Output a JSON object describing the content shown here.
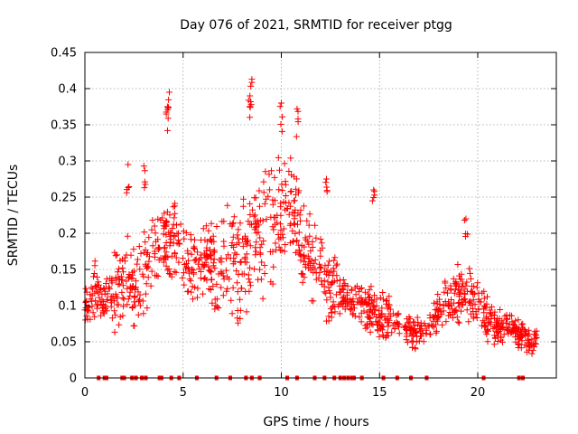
{
  "chart_data": {
    "type": "scatter",
    "title": "Day 076 of 2021, SRMTID for receiver ptgg",
    "xlabel": "GPS time / hours",
    "ylabel": "SRMTID / TECUs",
    "xlim": [
      0,
      24
    ],
    "ylim": [
      0,
      0.45
    ],
    "xticks": [
      0,
      5,
      10,
      15,
      20
    ],
    "xtick_labels": [
      "0",
      "5",
      "10",
      "15",
      "20"
    ],
    "yticks": [
      0,
      0.05,
      0.1,
      0.15,
      0.2,
      0.25,
      0.3,
      0.35,
      0.4,
      0.45
    ],
    "ytick_labels": [
      "0",
      "0.05",
      "0.1",
      "0.15",
      "0.2",
      "0.25",
      "0.3",
      "0.35",
      "0.4",
      "0.45"
    ],
    "grid": true,
    "series": [
      {
        "name": "SRMTID",
        "color": "#ff0000",
        "marker": "plus",
        "envelope_hours": [
          0,
          0.5,
          1.0,
          1.5,
          2.0,
          2.5,
          3.0,
          3.5,
          4.0,
          4.5,
          5.0,
          5.5,
          6.0,
          6.5,
          7.0,
          7.5,
          8.0,
          8.5,
          9.0,
          9.5,
          10.0,
          10.5,
          11.0,
          11.5,
          12.0,
          12.5,
          13.0,
          13.5,
          14.0,
          14.5,
          15.0,
          15.5,
          16.0,
          16.5,
          17.0,
          17.5,
          18.0,
          18.5,
          19.0,
          19.5,
          20.0,
          20.5,
          21.0,
          21.5,
          22.0,
          22.5,
          23.0
        ],
        "envelope_low": [
          0.07,
          0.07,
          0.06,
          0.05,
          0.05,
          0.05,
          0.05,
          0.09,
          0.13,
          0.12,
          0.11,
          0.1,
          0.1,
          0.07,
          0.07,
          0.08,
          0.07,
          0.09,
          0.1,
          0.12,
          0.14,
          0.14,
          0.13,
          0.1,
          0.07,
          0.07,
          0.08,
          0.08,
          0.07,
          0.06,
          0.04,
          0.05,
          0.05,
          0.04,
          0.04,
          0.05,
          0.06,
          0.06,
          0.07,
          0.07,
          0.06,
          0.05,
          0.04,
          0.05,
          0.04,
          0.03,
          0.03
        ],
        "envelope_high": [
          0.12,
          0.17,
          0.13,
          0.18,
          0.22,
          0.18,
          0.24,
          0.22,
          0.25,
          0.27,
          0.22,
          0.21,
          0.22,
          0.23,
          0.24,
          0.25,
          0.26,
          0.28,
          0.29,
          0.31,
          0.33,
          0.32,
          0.27,
          0.23,
          0.21,
          0.19,
          0.15,
          0.13,
          0.13,
          0.13,
          0.12,
          0.12,
          0.1,
          0.09,
          0.09,
          0.09,
          0.12,
          0.15,
          0.16,
          0.16,
          0.14,
          0.12,
          0.1,
          0.09,
          0.09,
          0.07,
          0.07
        ],
        "peaks": [
          {
            "x": 4.3,
            "y": 0.395
          },
          {
            "x": 4.2,
            "y": 0.375
          },
          {
            "x": 8.5,
            "y": 0.413
          },
          {
            "x": 8.4,
            "y": 0.39
          },
          {
            "x": 10.0,
            "y": 0.38
          },
          {
            "x": 10.8,
            "y": 0.372
          },
          {
            "x": 2.2,
            "y": 0.295
          },
          {
            "x": 3.0,
            "y": 0.293
          },
          {
            "x": 12.3,
            "y": 0.275
          },
          {
            "x": 14.7,
            "y": 0.26
          },
          {
            "x": 19.4,
            "y": 0.22
          }
        ],
        "zero_markers_hours": [
          0.7,
          1.0,
          1.1,
          1.9,
          2.0,
          2.4,
          2.6,
          2.9,
          3.1,
          3.8,
          3.9,
          4.4,
          4.8,
          5.7,
          6.7,
          7.4,
          8.2,
          8.5,
          8.9,
          10.3,
          10.8,
          11.7,
          12.2,
          12.7,
          13.0,
          13.2,
          13.4,
          13.6,
          13.7,
          14.1,
          15.2,
          15.9,
          16.6,
          17.4,
          20.3,
          22.1,
          22.3
        ]
      }
    ]
  }
}
